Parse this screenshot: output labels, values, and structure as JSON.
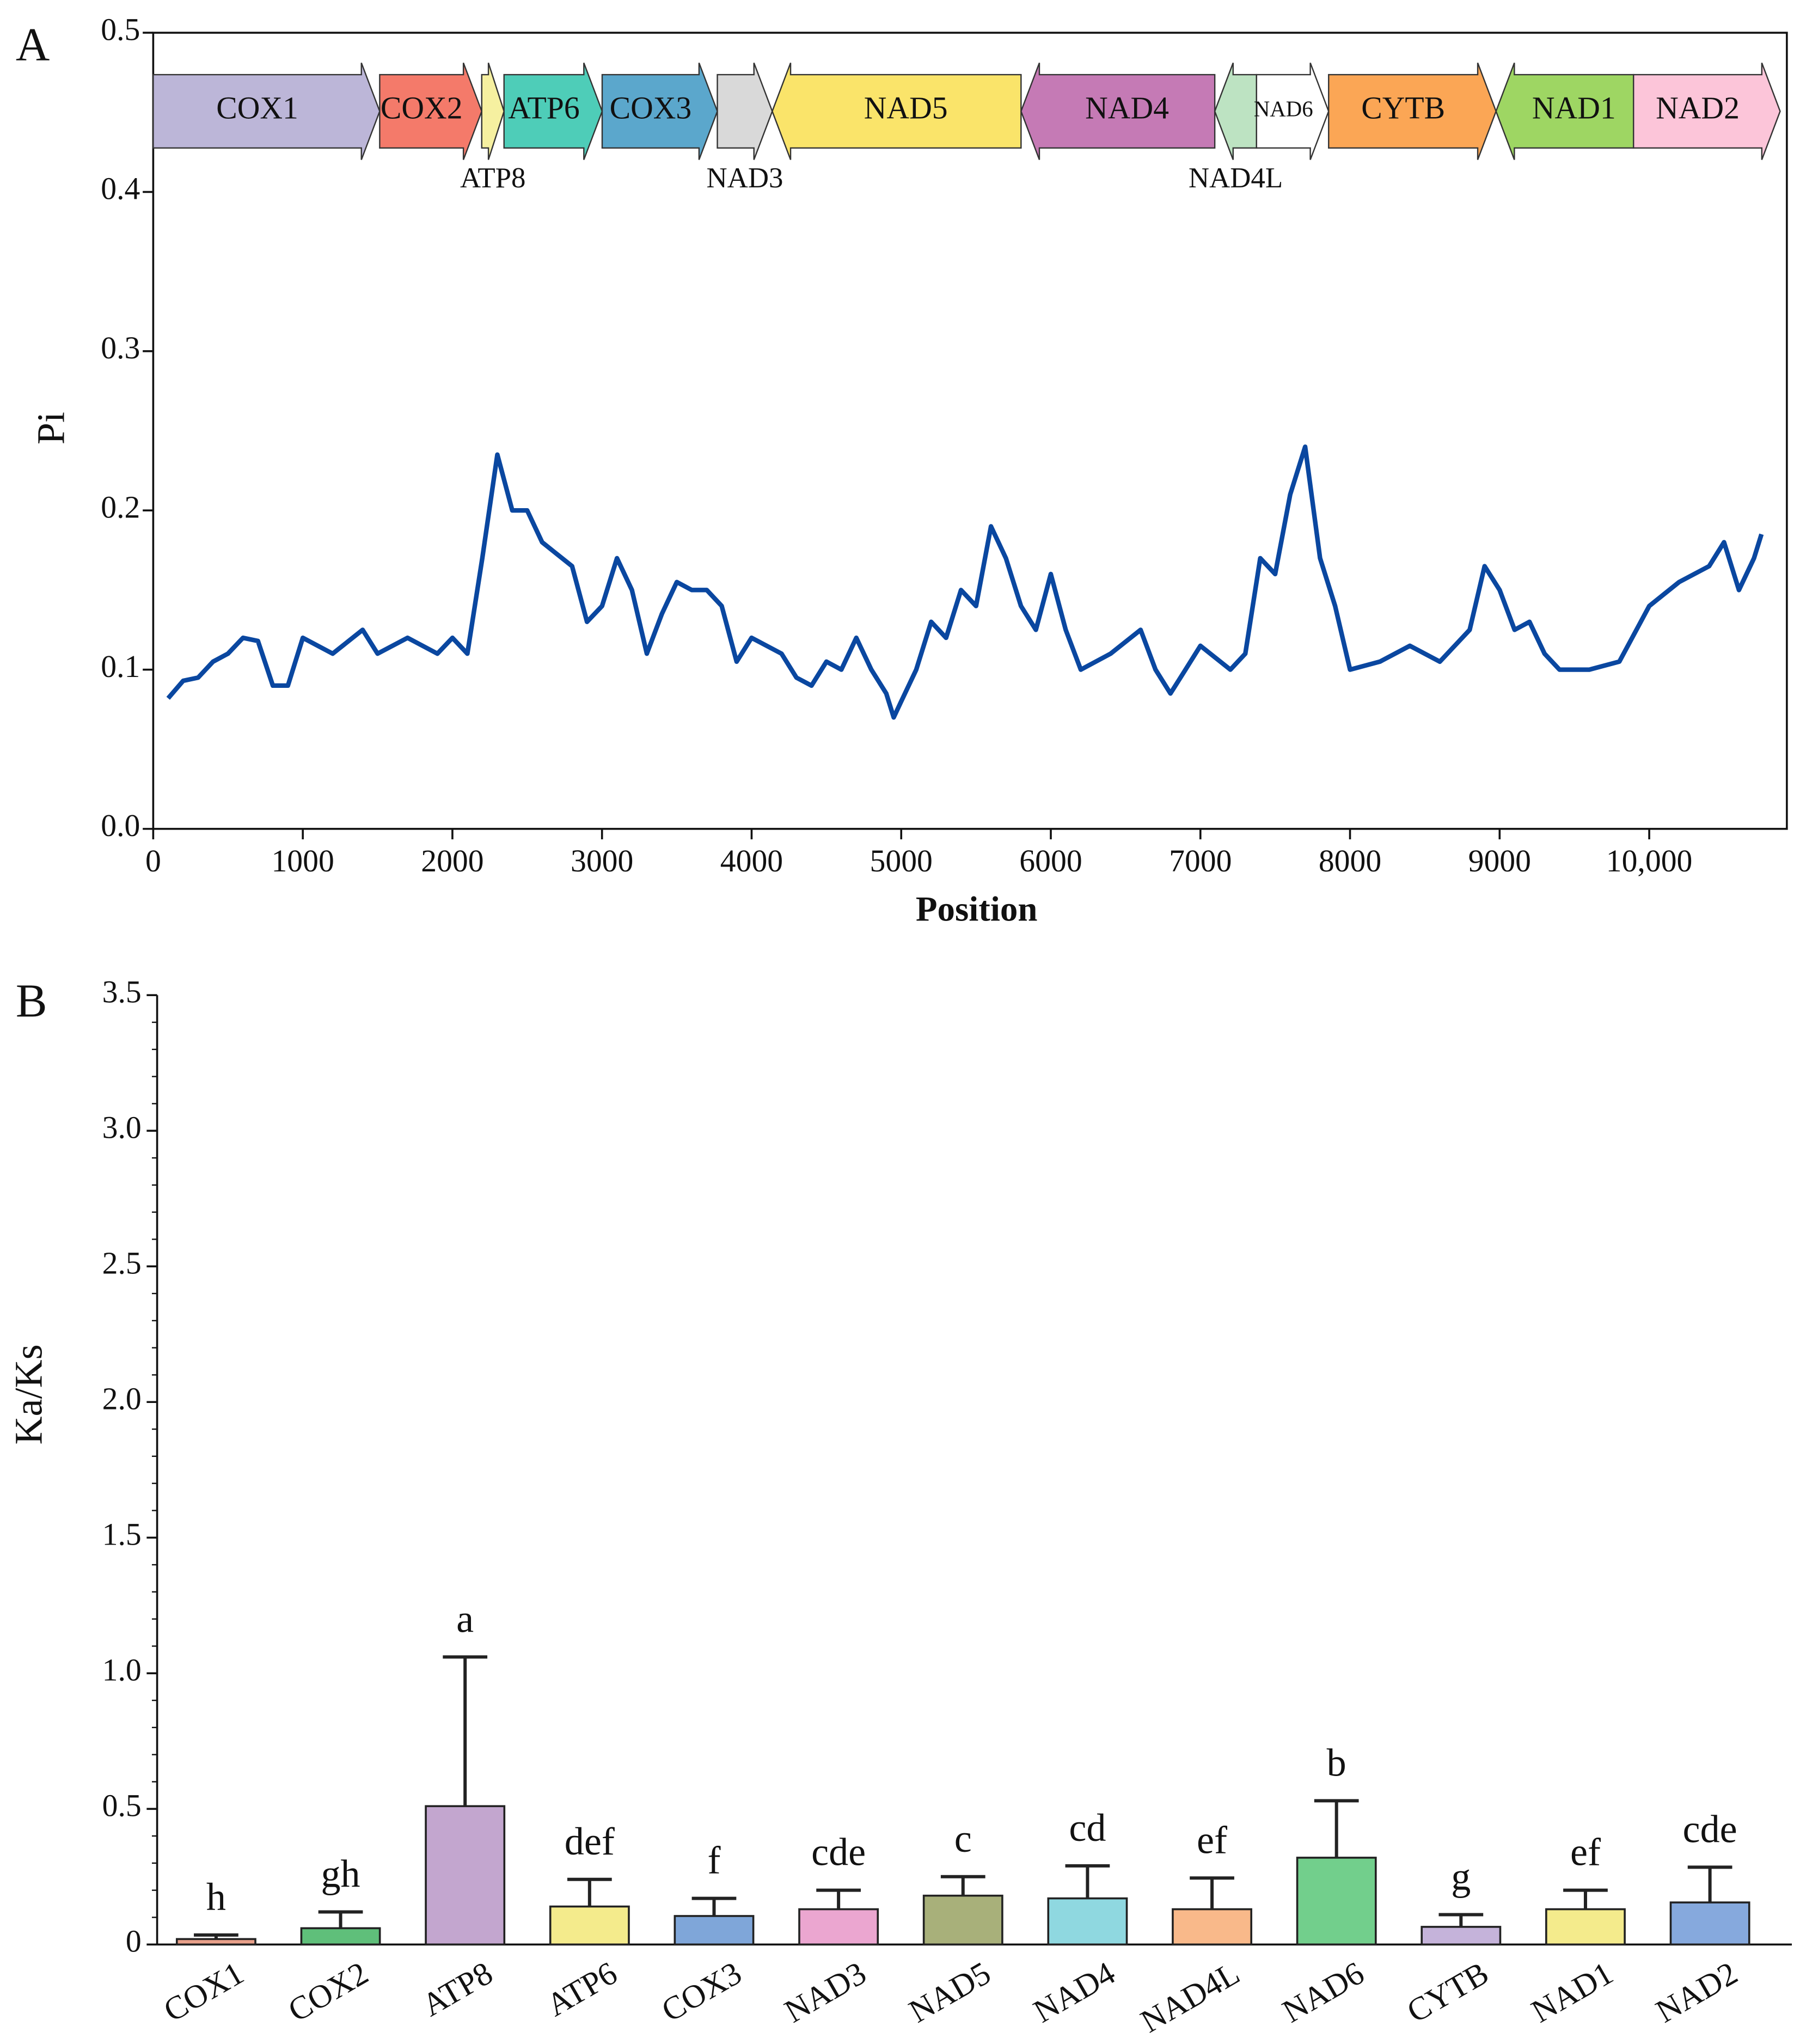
{
  "chart_data": [
    {
      "type": "line",
      "panel_label": "A",
      "xlabel": "Position",
      "ylabel": "Pi",
      "color": "#0a47a0",
      "xlim": [
        0,
        10920
      ],
      "ylim": [
        0,
        0.5
      ],
      "xticks": [
        0,
        1000,
        2000,
        3000,
        4000,
        5000,
        6000,
        7000,
        8000,
        9000,
        {
          "value": 10000,
          "label": "10,000"
        }
      ],
      "yticks": [
        {
          "value": 0,
          "label": "0.0"
        },
        0.1,
        0.2,
        0.3,
        0.4,
        0.5
      ],
      "x": [
        100,
        200,
        300,
        400,
        500,
        600,
        700,
        800,
        900,
        1000,
        1200,
        1400,
        1500,
        1700,
        1900,
        2000,
        2100,
        2200,
        2300,
        2400,
        2500,
        2600,
        2800,
        2900,
        3000,
        3100,
        3200,
        3300,
        3400,
        3500,
        3600,
        3700,
        3800,
        3900,
        4000,
        4200,
        4300,
        4400,
        4500,
        4600,
        4700,
        4800,
        4900,
        4950,
        5000,
        5100,
        5200,
        5300,
        5400,
        5500,
        5600,
        5700,
        5800,
        5900,
        6000,
        6100,
        6200,
        6400,
        6600,
        6700,
        6800,
        6900,
        7000,
        7200,
        7300,
        7400,
        7500,
        7600,
        7700,
        7800,
        7900,
        8000,
        8200,
        8400,
        8600,
        8800,
        8900,
        9000,
        9100,
        9200,
        9300,
        9400,
        9600,
        9800,
        10000,
        10200,
        10400,
        10500,
        10600,
        10700,
        10750
      ],
      "values": [
        0.082,
        0.093,
        0.095,
        0.105,
        0.11,
        0.12,
        0.118,
        0.09,
        0.09,
        0.12,
        0.11,
        0.125,
        0.11,
        0.12,
        0.11,
        0.12,
        0.11,
        0.17,
        0.235,
        0.2,
        0.2,
        0.18,
        0.165,
        0.13,
        0.14,
        0.17,
        0.15,
        0.11,
        0.135,
        0.155,
        0.15,
        0.15,
        0.14,
        0.105,
        0.12,
        0.11,
        0.095,
        0.09,
        0.105,
        0.1,
        0.12,
        0.1,
        0.085,
        0.07,
        0.08,
        0.1,
        0.13,
        0.12,
        0.15,
        0.14,
        0.19,
        0.17,
        0.14,
        0.125,
        0.16,
        0.125,
        0.1,
        0.11,
        0.125,
        0.1,
        0.085,
        0.1,
        0.115,
        0.1,
        0.11,
        0.17,
        0.16,
        0.21,
        0.24,
        0.17,
        0.14,
        0.1,
        0.105,
        0.115,
        0.105,
        0.125,
        0.165,
        0.15,
        0.125,
        0.13,
        0.11,
        0.1,
        0.1,
        0.105,
        0.14,
        0.155,
        0.165,
        0.18,
        0.15,
        0.17,
        0.185
      ],
      "genes": [
        {
          "name": "COX1",
          "start": 0,
          "end": 1514,
          "direction": "right",
          "color": "#bcb6d8"
        },
        {
          "name": "COX2",
          "start": 1514,
          "end": 2196,
          "direction": "right",
          "color": "#f47a6a"
        },
        {
          "name": "ATP8",
          "start": 2196,
          "end": 2345,
          "direction": "right",
          "color": "#f6f0a0",
          "label_below": true
        },
        {
          "name": "ATP6",
          "start": 2345,
          "end": 3001,
          "direction": "right",
          "color": "#4ecdb8"
        },
        {
          "name": "COX3",
          "start": 3001,
          "end": 3771,
          "direction": "right",
          "color": "#5ba7cc"
        },
        {
          "name": "NAD3",
          "start": 3771,
          "end": 4138,
          "direction": "right",
          "color": "#d9d9d9",
          "label_below": true
        },
        {
          "name": "NAD5",
          "start": 4138,
          "end": 5801,
          "direction": "left",
          "color": "#fae46a"
        },
        {
          "name": "NAD4",
          "start": 5801,
          "end": 7096,
          "direction": "left",
          "color": "#c57ab5"
        },
        {
          "name": "NAD4L",
          "start": 7096,
          "end": 7375,
          "direction": "left",
          "color": "#bde3c2",
          "label_below": true
        },
        {
          "name": "NAD6",
          "start": 7375,
          "end": 7857,
          "direction": "right",
          "color": "#ffffff",
          "small_label": true
        },
        {
          "name": "CYTB",
          "start": 7857,
          "end": 8976,
          "direction": "right",
          "color": "#fba655"
        },
        {
          "name": "NAD1",
          "start": 8976,
          "end": 9895,
          "direction": "left",
          "color": "#9ed663"
        },
        {
          "name": "NAD2",
          "start": 9895,
          "end": 10875,
          "direction": "right",
          "color": "#fcc5d9"
        }
      ]
    },
    {
      "type": "bar",
      "panel_label": "B",
      "ylabel": "Ka/Ks",
      "ylim": [
        0,
        3.5
      ],
      "yticks": [
        0,
        0.5,
        {
          "value": 1,
          "label": "1.0"
        },
        1.5,
        {
          "value": 2,
          "label": "2.0"
        },
        2.5,
        {
          "value": 3,
          "label": "3.0"
        },
        3.5
      ],
      "categories": [
        "COX1",
        "COX2",
        "ATP8",
        "ATP6",
        "COX3",
        "NAD3",
        "NAD5",
        "NAD4",
        "NAD4L",
        "NAD6",
        "CYTB",
        "NAD1",
        "NAD2"
      ],
      "values": [
        0.02,
        0.06,
        0.51,
        0.14,
        0.105,
        0.13,
        0.18,
        0.17,
        0.13,
        0.32,
        0.065,
        0.13,
        0.155
      ],
      "errors": [
        0.015,
        0.06,
        0.55,
        0.1,
        0.065,
        0.07,
        0.07,
        0.12,
        0.115,
        0.21,
        0.045,
        0.07,
        0.13
      ],
      "letters": [
        "h",
        "gh",
        "a",
        "def",
        "f",
        "cde",
        "c",
        "cd",
        "ef",
        "b",
        "g",
        "ef",
        "cde"
      ],
      "colors": [
        "#e8a08a",
        "#5fbf7a",
        "#c3a6cf",
        "#f4eb8c",
        "#7fa6d9",
        "#eba6d0",
        "#a8b07a",
        "#8fd8e0",
        "#f9b98a",
        "#72cf8c",
        "#c5b3da",
        "#f4eb8c",
        "#86a9dd"
      ]
    }
  ]
}
